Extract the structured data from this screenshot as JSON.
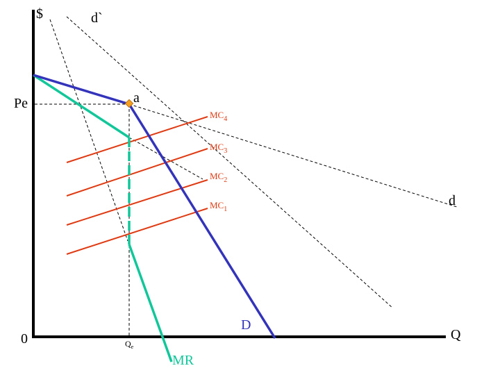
{
  "labels": {
    "y_axis": "$",
    "x_axis": "Q",
    "origin": "0",
    "price": "Pe",
    "quantity": {
      "base": "Q",
      "sub": "e"
    },
    "kink_point": "a",
    "curve_d": "d",
    "curve_d_prime": "d`",
    "demand": "D",
    "marginal_revenue": "MR",
    "mc": [
      {
        "base": "MC",
        "sub": "4"
      },
      {
        "base": "MC",
        "sub": "3"
      },
      {
        "base": "MC",
        "sub": "2"
      },
      {
        "base": "MC",
        "sub": "1"
      }
    ]
  },
  "colors": {
    "axes": "#000000",
    "demand": "#3333bb",
    "marginal_revenue": "#11c79a",
    "marginal_cost": "#e03a12",
    "kink_marker": "#f5a020",
    "dashed": "#000000"
  }
}
